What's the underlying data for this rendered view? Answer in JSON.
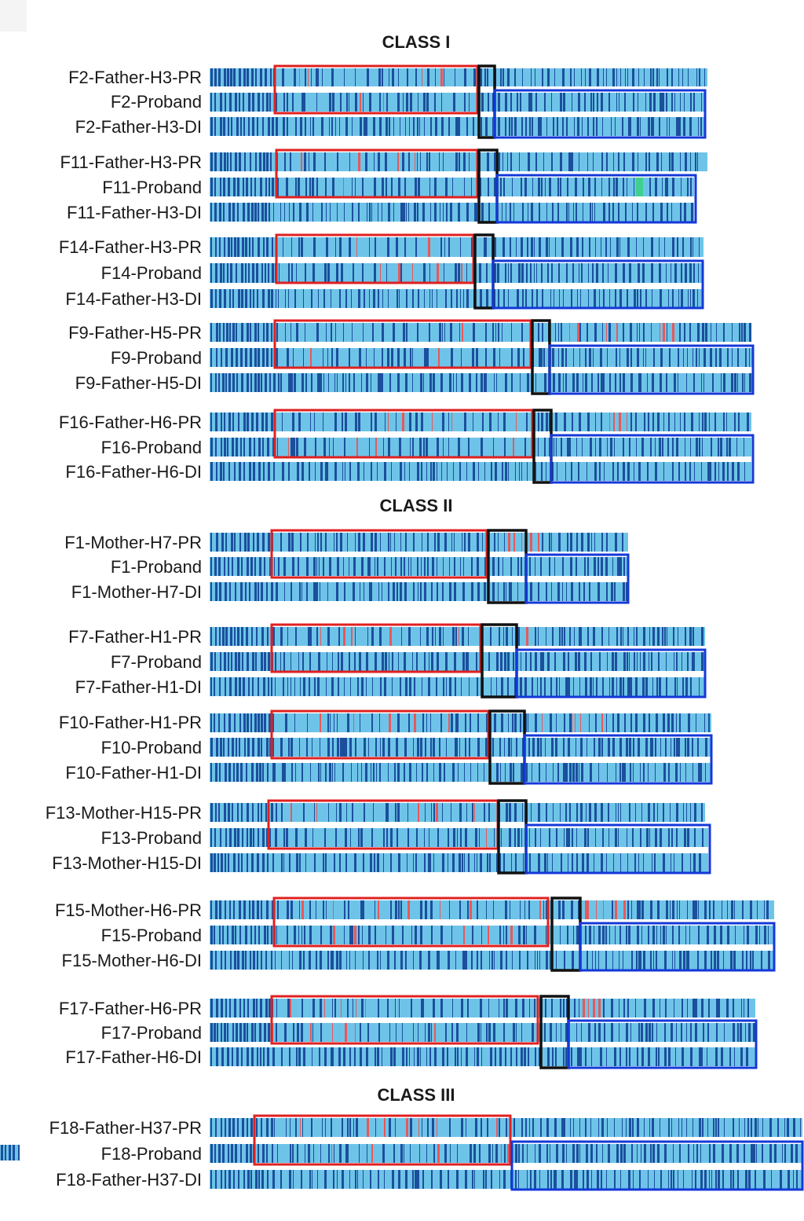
{
  "colors": {
    "bar_background": "#6ec4e8",
    "minor_variant": "#1b4f9c",
    "rare_variant": "#e8585a",
    "highlight_variant": "#3fcf8e",
    "ibd_box": "#e02020",
    "breakpoint_box": "#111111",
    "switch_box": "#1438d8"
  },
  "classes": [
    {
      "title": "CLASS I",
      "families": [
        {
          "rows": [
            {
              "label": "F2-Father-H3-PR",
              "seed": 21
            },
            {
              "label": "F2-Proband",
              "seed": 22
            },
            {
              "label": "F2-Father-H3-DI",
              "seed": 23
            }
          ]
        },
        {
          "rows": [
            {
              "label": "F11-Father-H3-PR",
              "seed": 111
            },
            {
              "label": "F11-Proband",
              "seed": 112
            },
            {
              "label": "F11-Father-H3-DI",
              "seed": 113
            }
          ]
        },
        {
          "rows": [
            {
              "label": "F14-Father-H3-PR",
              "seed": 141
            },
            {
              "label": "F14-Proband",
              "seed": 142
            },
            {
              "label": "F14-Father-H3-DI",
              "seed": 143
            }
          ]
        },
        {
          "rows": [
            {
              "label": "F9-Father-H5-PR",
              "seed": 91
            },
            {
              "label": "F9-Proband",
              "seed": 92
            },
            {
              "label": "F9-Father-H5-DI",
              "seed": 93
            }
          ]
        },
        {
          "rows": [
            {
              "label": "F16-Father-H6-PR",
              "seed": 161
            },
            {
              "label": "F16-Proband",
              "seed": 162
            },
            {
              "label": "F16-Father-H6-DI",
              "seed": 163
            }
          ]
        }
      ]
    },
    {
      "title": "CLASS II",
      "families": [
        {
          "rows": [
            {
              "label": "F1-Mother-H7-PR",
              "seed": 11
            },
            {
              "label": "F1-Proband",
              "seed": 12
            },
            {
              "label": "F1-Mother-H7-DI",
              "seed": 13
            }
          ]
        },
        {
          "rows": [
            {
              "label": "F7-Father-H1-PR",
              "seed": 71
            },
            {
              "label": "F7-Proband",
              "seed": 72
            },
            {
              "label": "F7-Father-H1-DI",
              "seed": 73
            }
          ]
        },
        {
          "rows": [
            {
              "label": "F10-Father-H1-PR",
              "seed": 101
            },
            {
              "label": "F10-Proband",
              "seed": 102
            },
            {
              "label": "F10-Father-H1-DI",
              "seed": 103
            }
          ]
        },
        {
          "rows": [
            {
              "label": "F13-Mother-H15-PR",
              "seed": 131
            },
            {
              "label": "F13-Proband",
              "seed": 132
            },
            {
              "label": "F13-Mother-H15-DI",
              "seed": 133
            }
          ]
        },
        {
          "rows": [
            {
              "label": "F15-Mother-H6-PR",
              "seed": 151
            },
            {
              "label": "F15-Proband",
              "seed": 152
            },
            {
              "label": "F15-Mother-H6-DI",
              "seed": 153
            }
          ]
        },
        {
          "rows": [
            {
              "label": "F17-Father-H6-PR",
              "seed": 171
            },
            {
              "label": "F17-Proband",
              "seed": 172
            },
            {
              "label": "F17-Father-H6-DI",
              "seed": 173
            }
          ]
        }
      ]
    },
    {
      "title": "CLASS III",
      "families": [
        {
          "rows": [
            {
              "label": "F18-Father-H37-PR",
              "seed": 181
            },
            {
              "label": "F18-Proband",
              "seed": 182
            },
            {
              "label": "F18-Father-H37-DI",
              "seed": 183
            }
          ]
        }
      ]
    }
  ]
}
